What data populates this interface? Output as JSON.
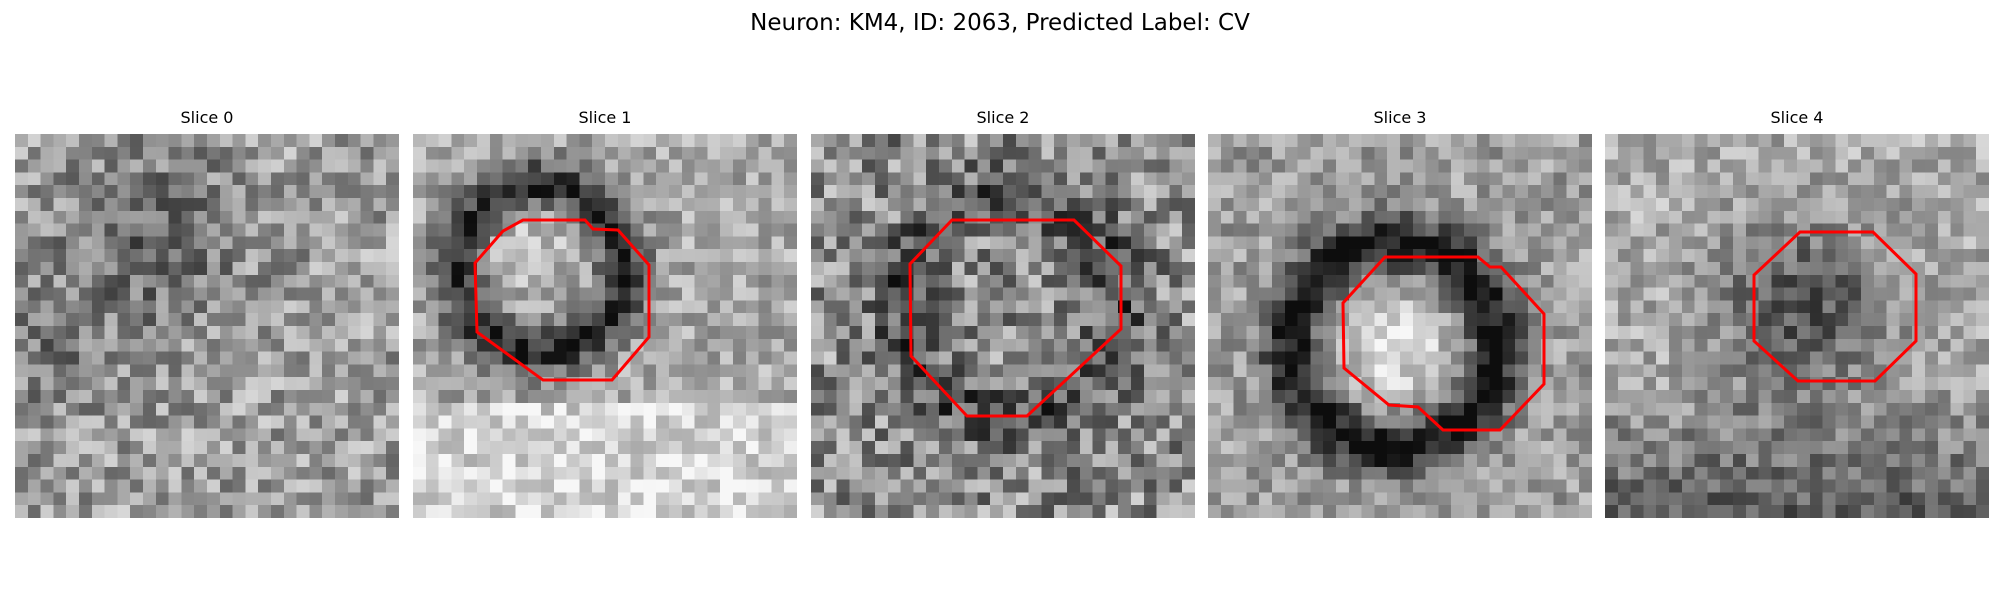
{
  "figure": {
    "title": "Neuron: KM4, ID: 2063, Predicted Label: CV"
  },
  "slices": [
    {
      "title": "Slice 0",
      "has_roi": false
    },
    {
      "title": "Slice 1",
      "has_roi": true
    },
    {
      "title": "Slice 2",
      "has_roi": true
    },
    {
      "title": "Slice 3",
      "has_roi": true
    },
    {
      "title": "Slice 4",
      "has_roi": true
    }
  ],
  "colors": {
    "roi_outline": "#ff0000",
    "background": "#ffffff"
  }
}
